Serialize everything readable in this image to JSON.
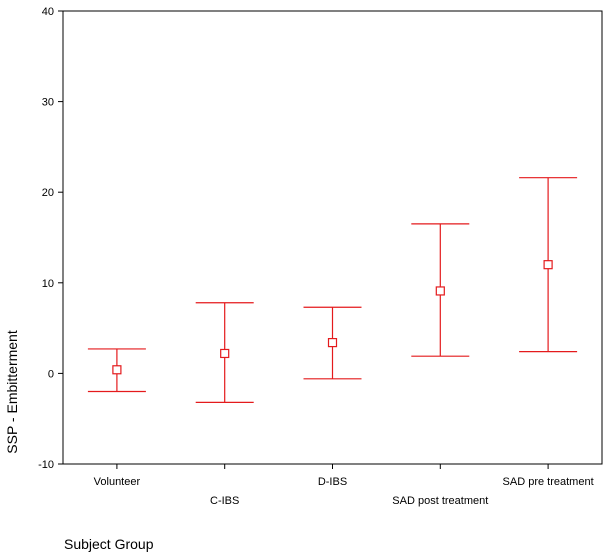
{
  "chart_data": {
    "type": "errorbar",
    "title": "",
    "xlabel": "Subject Group",
    "ylabel": "SSP - Embitterment",
    "ylim": [
      -10,
      40
    ],
    "yticks": [
      -10,
      0,
      10,
      20,
      30,
      40
    ],
    "grid": false,
    "color": "#e41a1c",
    "categories": [
      "Volunteer",
      "C-IBS",
      "D-IBS",
      "SAD post treatment",
      "SAD pre treatment"
    ],
    "mean": [
      0.4,
      2.2,
      3.4,
      9.1,
      12.0
    ],
    "lower": [
      -2.0,
      -3.2,
      -0.6,
      1.9,
      2.4
    ],
    "upper": [
      2.7,
      7.8,
      7.3,
      16.5,
      21.6
    ]
  }
}
